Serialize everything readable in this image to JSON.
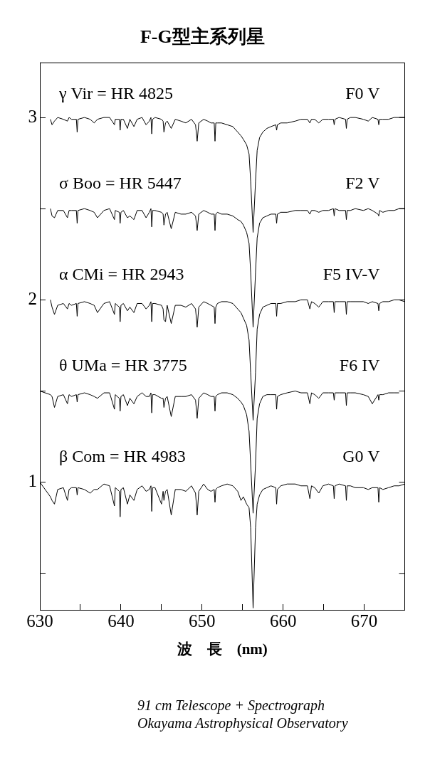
{
  "chart_data": {
    "type": "line",
    "title": "F-G型主系列星",
    "xlabel": "波　長　(nm)",
    "xlim": [
      630,
      675
    ],
    "xticks": [
      630,
      {
        "value": 635,
        "label": null
      },
      640,
      {
        "value": 645,
        "label": null
      },
      650,
      {
        "value": 655,
        "label": null
      },
      660,
      {
        "value": 665,
        "label": null
      },
      670
    ],
    "ylim": [
      0.3,
      3.3
    ],
    "yticks": [
      {
        "value": 0.5,
        "label": null
      },
      1,
      {
        "value": 1.5,
        "label": null
      },
      2,
      {
        "value": 2.5,
        "label": null
      },
      3
    ],
    "marker": "none",
    "x": [
      630.0,
      631.3,
      631.5,
      631.8,
      632.2,
      632.9,
      633.4,
      633.6,
      633.9,
      634.5,
      634.6,
      634.7,
      635.5,
      636.2,
      636.7,
      637.1,
      637.9,
      638.6,
      639.2,
      639.3,
      639.8,
      639.9,
      640.0,
      640.3,
      640.8,
      641.1,
      641.6,
      642.0,
      642.6,
      643.1,
      643.5,
      643.7,
      643.8,
      643.9,
      644.2,
      645.0,
      645.2,
      645.3,
      645.5,
      645.7,
      646.2,
      646.7,
      647.4,
      648.0,
      648.7,
      649.2,
      649.4,
      649.6,
      650.2,
      650.7,
      651.1,
      651.5,
      651.6,
      651.7,
      651.9,
      652.4,
      653.1,
      653.8,
      654.4,
      654.8,
      655.1,
      655.5,
      655.8,
      656.0,
      656.3,
      656.6,
      656.8,
      657.1,
      657.5,
      658.0,
      658.5,
      659.1,
      659.2,
      659.3,
      659.7,
      660.5,
      661.5,
      662.2,
      663.0,
      663.3,
      663.5,
      663.9,
      664.4,
      664.9,
      665.6,
      666.2,
      666.3,
      666.4,
      666.9,
      667.7,
      667.8,
      667.9,
      668.3,
      668.9,
      669.9,
      670.5,
      671.0,
      671.7,
      671.8,
      671.9,
      672.3,
      673.0,
      673.7,
      674.3,
      675.0
    ],
    "series": [
      {
        "name": "γ Vir = HR 4825",
        "color": "#000000",
        "values": [
          null,
          2.99,
          2.96,
          2.98,
          3.0,
          2.99,
          2.98,
          3.0,
          2.99,
          2.99,
          2.92,
          2.99,
          3.0,
          2.99,
          2.97,
          2.99,
          3.0,
          3.0,
          2.96,
          2.99,
          2.99,
          2.93,
          2.99,
          2.99,
          2.94,
          2.99,
          2.95,
          2.99,
          3.0,
          2.96,
          2.98,
          3.0,
          2.91,
          2.99,
          3.0,
          2.99,
          2.98,
          2.92,
          2.97,
          2.98,
          2.94,
          2.99,
          2.98,
          2.97,
          2.99,
          2.96,
          2.87,
          2.97,
          2.99,
          2.98,
          2.97,
          2.97,
          2.87,
          2.97,
          2.97,
          2.97,
          2.96,
          2.95,
          2.92,
          2.9,
          2.88,
          2.85,
          2.8,
          2.65,
          2.37,
          2.65,
          2.82,
          2.89,
          2.92,
          2.94,
          2.95,
          2.96,
          2.93,
          2.96,
          2.97,
          2.97,
          2.98,
          2.99,
          2.99,
          2.97,
          2.99,
          2.99,
          2.97,
          2.99,
          2.99,
          2.99,
          2.96,
          2.99,
          3.0,
          2.99,
          2.94,
          2.99,
          3.0,
          3.0,
          2.99,
          2.98,
          3.0,
          2.99,
          2.96,
          2.99,
          2.99,
          2.99,
          3.0,
          3.0,
          3.0
        ]
      },
      {
        "name": "σ Boo = HR 5447",
        "color": "#000000",
        "values": [
          null,
          2.5,
          2.46,
          2.45,
          2.49,
          2.49,
          2.45,
          2.49,
          2.49,
          2.49,
          2.42,
          2.49,
          2.5,
          2.49,
          2.48,
          2.45,
          2.49,
          2.5,
          2.44,
          2.49,
          2.48,
          2.42,
          2.48,
          2.49,
          2.45,
          2.46,
          2.44,
          2.49,
          2.49,
          2.45,
          2.48,
          2.5,
          2.4,
          2.49,
          2.49,
          2.48,
          2.47,
          2.41,
          2.47,
          2.48,
          2.39,
          2.48,
          2.47,
          2.47,
          2.48,
          2.46,
          2.38,
          2.47,
          2.49,
          2.48,
          2.47,
          2.47,
          2.38,
          2.47,
          2.48,
          2.47,
          2.47,
          2.46,
          2.44,
          2.43,
          2.41,
          2.37,
          2.31,
          2.15,
          1.85,
          2.15,
          2.34,
          2.42,
          2.45,
          2.46,
          2.47,
          2.47,
          2.42,
          2.47,
          2.48,
          2.48,
          2.49,
          2.49,
          2.49,
          2.47,
          2.49,
          2.49,
          2.48,
          2.49,
          2.49,
          2.5,
          2.46,
          2.5,
          2.49,
          2.49,
          2.44,
          2.49,
          2.49,
          2.5,
          2.49,
          2.5,
          2.49,
          2.47,
          2.46,
          2.49,
          2.48,
          2.49,
          2.49,
          2.5,
          2.5
        ]
      },
      {
        "name": "α CMi = HR 2943",
        "color": "#000000",
        "values": [
          null,
          2.0,
          1.96,
          1.92,
          1.97,
          1.98,
          1.95,
          1.98,
          1.97,
          1.98,
          1.91,
          1.98,
          1.99,
          1.98,
          1.97,
          1.93,
          1.98,
          1.99,
          1.92,
          1.98,
          1.96,
          1.88,
          1.97,
          1.98,
          1.94,
          1.96,
          1.93,
          1.98,
          1.98,
          1.95,
          1.97,
          1.99,
          1.88,
          1.98,
          1.98,
          1.97,
          1.95,
          1.89,
          1.88,
          1.97,
          1.87,
          1.97,
          1.97,
          1.96,
          1.98,
          1.95,
          1.85,
          1.96,
          1.99,
          1.98,
          1.97,
          1.96,
          1.87,
          1.96,
          1.98,
          1.99,
          1.99,
          1.98,
          1.95,
          1.93,
          1.9,
          1.86,
          1.78,
          1.6,
          1.34,
          1.6,
          1.84,
          1.92,
          1.96,
          1.97,
          1.98,
          1.98,
          1.91,
          1.98,
          1.98,
          1.99,
          1.99,
          2.0,
          2.0,
          1.95,
          1.99,
          1.98,
          1.96,
          1.99,
          1.99,
          1.99,
          1.93,
          1.99,
          1.99,
          1.99,
          1.92,
          1.99,
          1.99,
          1.99,
          1.99,
          1.98,
          1.99,
          1.98,
          1.94,
          1.98,
          1.99,
          1.99,
          2.0,
          2.0,
          1.99
        ]
      },
      {
        "name": "θ UMa = HR 3775",
        "color": "#000000",
        "values": [
          1.5,
          1.48,
          1.47,
          1.41,
          1.47,
          1.48,
          1.43,
          1.48,
          1.47,
          1.48,
          1.44,
          1.48,
          1.49,
          1.48,
          1.47,
          1.46,
          1.49,
          1.49,
          1.4,
          1.48,
          1.46,
          1.39,
          1.47,
          1.48,
          1.42,
          1.46,
          1.43,
          1.47,
          1.49,
          1.47,
          1.47,
          1.49,
          1.38,
          1.48,
          1.48,
          1.46,
          1.46,
          1.41,
          1.46,
          1.47,
          1.36,
          1.47,
          1.47,
          1.47,
          1.48,
          1.45,
          1.35,
          1.46,
          1.49,
          1.48,
          1.47,
          1.47,
          1.39,
          1.47,
          1.48,
          1.49,
          1.49,
          1.48,
          1.46,
          1.44,
          1.42,
          1.37,
          1.28,
          1.1,
          0.83,
          1.1,
          1.35,
          1.43,
          1.47,
          1.48,
          1.48,
          1.48,
          1.4,
          1.47,
          1.48,
          1.49,
          1.5,
          1.49,
          1.49,
          1.43,
          1.49,
          1.48,
          1.46,
          1.49,
          1.49,
          1.49,
          1.45,
          1.49,
          1.49,
          1.49,
          1.42,
          1.49,
          1.49,
          1.49,
          1.48,
          1.47,
          1.43,
          1.48,
          1.45,
          1.48,
          1.48,
          1.49,
          1.49,
          1.49,
          null
        ]
      },
      {
        "name": "β Com = HR 4983",
        "color": "#000000",
        "values": [
          1.0,
          0.92,
          0.9,
          0.88,
          0.96,
          0.97,
          0.9,
          0.96,
          0.97,
          0.97,
          0.93,
          0.97,
          0.96,
          0.94,
          0.96,
          0.96,
          0.99,
          0.98,
          0.87,
          0.97,
          0.95,
          0.81,
          0.96,
          0.97,
          0.88,
          0.93,
          0.9,
          0.96,
          0.98,
          0.95,
          0.96,
          0.98,
          0.84,
          0.97,
          0.97,
          0.88,
          0.95,
          0.9,
          0.95,
          0.96,
          0.82,
          0.96,
          0.96,
          0.95,
          0.98,
          0.94,
          0.82,
          0.95,
          0.99,
          0.96,
          0.95,
          0.96,
          0.89,
          0.96,
          0.97,
          0.98,
          0.99,
          0.98,
          0.95,
          0.9,
          0.92,
          0.88,
          0.86,
          0.75,
          0.31,
          0.75,
          0.88,
          0.93,
          0.96,
          0.97,
          0.98,
          0.97,
          0.88,
          0.96,
          0.98,
          0.99,
          0.99,
          0.98,
          0.98,
          0.91,
          0.98,
          0.97,
          0.94,
          0.98,
          0.99,
          0.98,
          0.91,
          0.98,
          0.99,
          0.98,
          0.9,
          0.98,
          0.98,
          0.97,
          0.97,
          0.96,
          0.97,
          0.97,
          0.89,
          0.97,
          0.96,
          0.97,
          0.98,
          0.98,
          0.99
        ]
      }
    ],
    "annotations": [
      "F0 V",
      "F2 V",
      "F5 IV-V",
      "F6 IV",
      "G0 V",
      "91 cm Telescope + Spectrograph",
      "Okayama Astrophysical Observatory"
    ]
  }
}
